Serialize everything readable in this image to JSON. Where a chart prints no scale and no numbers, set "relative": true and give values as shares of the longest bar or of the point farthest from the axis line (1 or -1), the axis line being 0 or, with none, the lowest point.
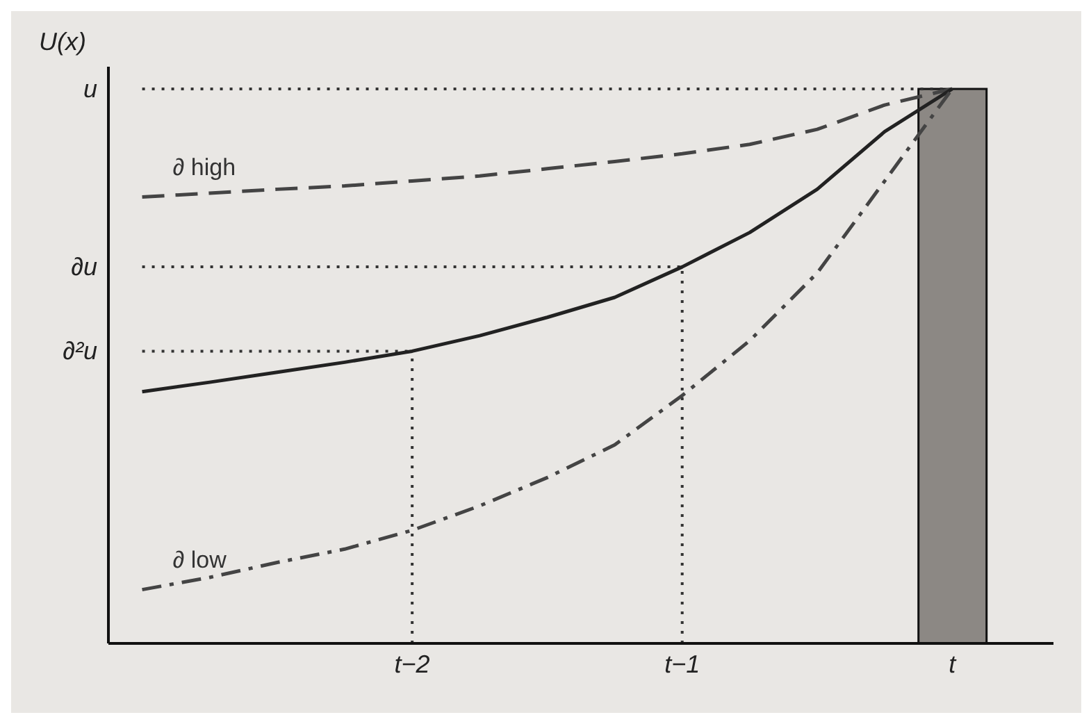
{
  "chart_data": {
    "type": "line",
    "ylabel": "U(x)",
    "relative": true,
    "categories": [
      null,
      null,
      null,
      null,
      "t−2",
      null,
      null,
      null,
      "t−1",
      null,
      null,
      null,
      "t",
      null
    ],
    "ref_lines": [
      {
        "axis": "y",
        "value": 0.527,
        "label": "∂²u",
        "line_style": "dotted",
        "color": "#333333"
      },
      {
        "axis": "y",
        "value": 0.679,
        "label": "∂u",
        "line_style": "dotted",
        "color": "#333333"
      },
      {
        "axis": "y",
        "value": 1,
        "label": "u",
        "line_style": "dotted",
        "color": "#333333"
      },
      {
        "axis": "x",
        "value": "t−2",
        "line_style": "dotted",
        "color": "#333333"
      },
      {
        "axis": "x",
        "value": "t−1",
        "line_style": "dotted",
        "color": "#333333"
      }
    ],
    "grid": false,
    "legend": false,
    "marker": "none",
    "series": [
      {
        "type": "bar",
        "color": "#8c8884",
        "values": [
          null,
          null,
          null,
          null,
          null,
          null,
          null,
          null,
          null,
          null,
          null,
          null,
          1,
          null
        ]
      },
      {
        "name": "∂ high",
        "color": "#444444",
        "line_style": "dashed",
        "values": [
          0.805,
          0.812,
          0.819,
          0.825,
          0.834,
          0.843,
          0.856,
          0.869,
          0.883,
          0.9,
          0.927,
          0.971,
          1,
          null
        ]
      },
      {
        "color": "#222222",
        "line_style": "solid",
        "values": [
          0.454,
          0.471,
          0.489,
          0.507,
          0.527,
          0.555,
          0.588,
          0.624,
          0.679,
          0.741,
          0.819,
          0.923,
          1,
          null
        ]
      },
      {
        "name": "∂ low",
        "color": "#444444",
        "line_style": "dashdot",
        "values": [
          0.097,
          0.119,
          0.146,
          0.17,
          0.204,
          0.248,
          0.299,
          0.358,
          0.447,
          0.546,
          0.668,
          0.834,
          1,
          null
        ]
      }
    ]
  }
}
